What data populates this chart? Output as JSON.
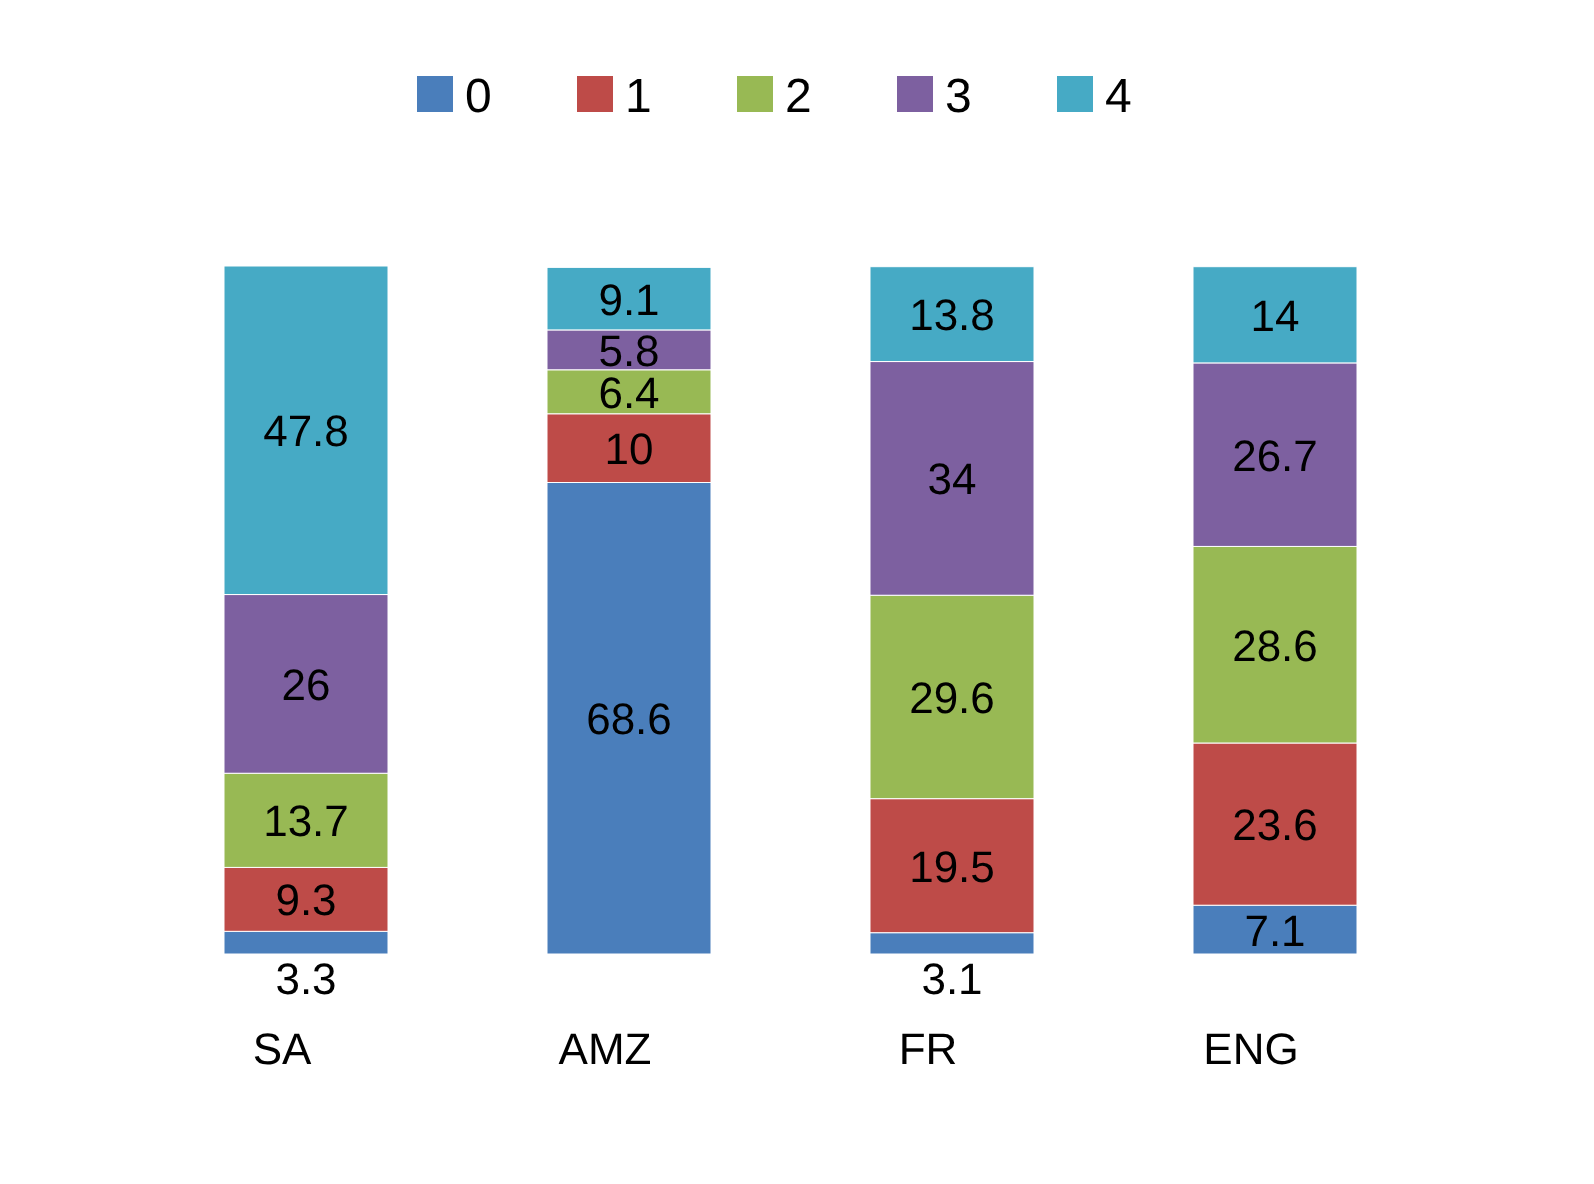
{
  "chart_data": {
    "type": "bar",
    "stacked": true,
    "data_labels": true,
    "legend": "top",
    "categories": [
      "SA",
      "AMZ",
      "FR",
      "ENG"
    ],
    "series": [
      {
        "name": "0",
        "color": "#4a7ebb",
        "values": [
          3.3,
          68.6,
          3.1,
          7.1
        ]
      },
      {
        "name": "1",
        "color": "#be4b48",
        "values": [
          9.3,
          10,
          19.5,
          23.6
        ]
      },
      {
        "name": "2",
        "color": "#98b954",
        "values": [
          13.7,
          6.4,
          29.6,
          28.6
        ]
      },
      {
        "name": "3",
        "color": "#7d60a0",
        "values": [
          26,
          5.8,
          34,
          26.7
        ]
      },
      {
        "name": "4",
        "color": "#46aac5",
        "values": [
          47.8,
          9.1,
          13.8,
          14
        ]
      }
    ]
  }
}
